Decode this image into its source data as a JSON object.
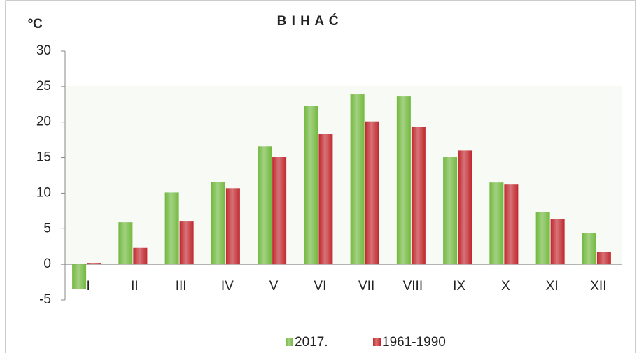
{
  "chart_data": {
    "type": "bar",
    "title": "B I H A Ć",
    "y_label": "ºC",
    "categories": [
      "I",
      "II",
      "III",
      "IV",
      "V",
      "VI",
      "VII",
      "VIII",
      "IX",
      "X",
      "XI",
      "XII"
    ],
    "series": [
      {
        "name": "2017.",
        "color": "#72b83e",
        "values": [
          -3.5,
          5.9,
          10.1,
          11.6,
          16.6,
          22.3,
          23.9,
          23.6,
          15.1,
          11.5,
          7.3,
          4.4
        ]
      },
      {
        "name": "1961-1990",
        "color": "#c0272d",
        "values": [
          0.2,
          2.3,
          6.1,
          10.7,
          15.1,
          18.3,
          20.1,
          19.3,
          16.0,
          11.3,
          6.4,
          1.7
        ]
      }
    ],
    "ylim": [
      -5,
      30
    ],
    "yticks": [
      -5,
      0,
      5,
      10,
      15,
      20,
      25,
      30
    ],
    "legend": "bottom"
  }
}
